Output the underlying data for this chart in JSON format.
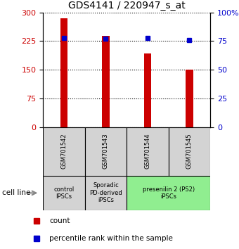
{
  "title": "GDS4141 / 220947_s_at",
  "samples": [
    "GSM701542",
    "GSM701543",
    "GSM701544",
    "GSM701545"
  ],
  "counts": [
    285,
    238,
    192,
    150
  ],
  "percentiles": [
    78,
    77,
    78,
    76
  ],
  "ylim_left": [
    0,
    300
  ],
  "ylim_right": [
    0,
    100
  ],
  "left_ticks": [
    0,
    75,
    150,
    225,
    300
  ],
  "right_ticks": [
    0,
    25,
    50,
    75,
    100
  ],
  "bar_color": "#cc0000",
  "dot_color": "#0000cc",
  "groups": [
    {
      "label": "control\nIPSCs",
      "start": 0,
      "end": 1,
      "color": "#d3d3d3"
    },
    {
      "label": "Sporadic\nPD-derived\niPSCs",
      "start": 1,
      "end": 2,
      "color": "#d3d3d3"
    },
    {
      "label": "presenilin 2 (PS2)\niPSCs",
      "start": 2,
      "end": 4,
      "color": "#90ee90"
    }
  ],
  "cell_line_label": "cell line",
  "legend_count_label": "count",
  "legend_pct_label": "percentile rank within the sample",
  "title_fontsize": 10,
  "tick_fontsize": 8,
  "sample_fontsize": 6,
  "group_fontsize": 6,
  "legend_fontsize": 7.5
}
